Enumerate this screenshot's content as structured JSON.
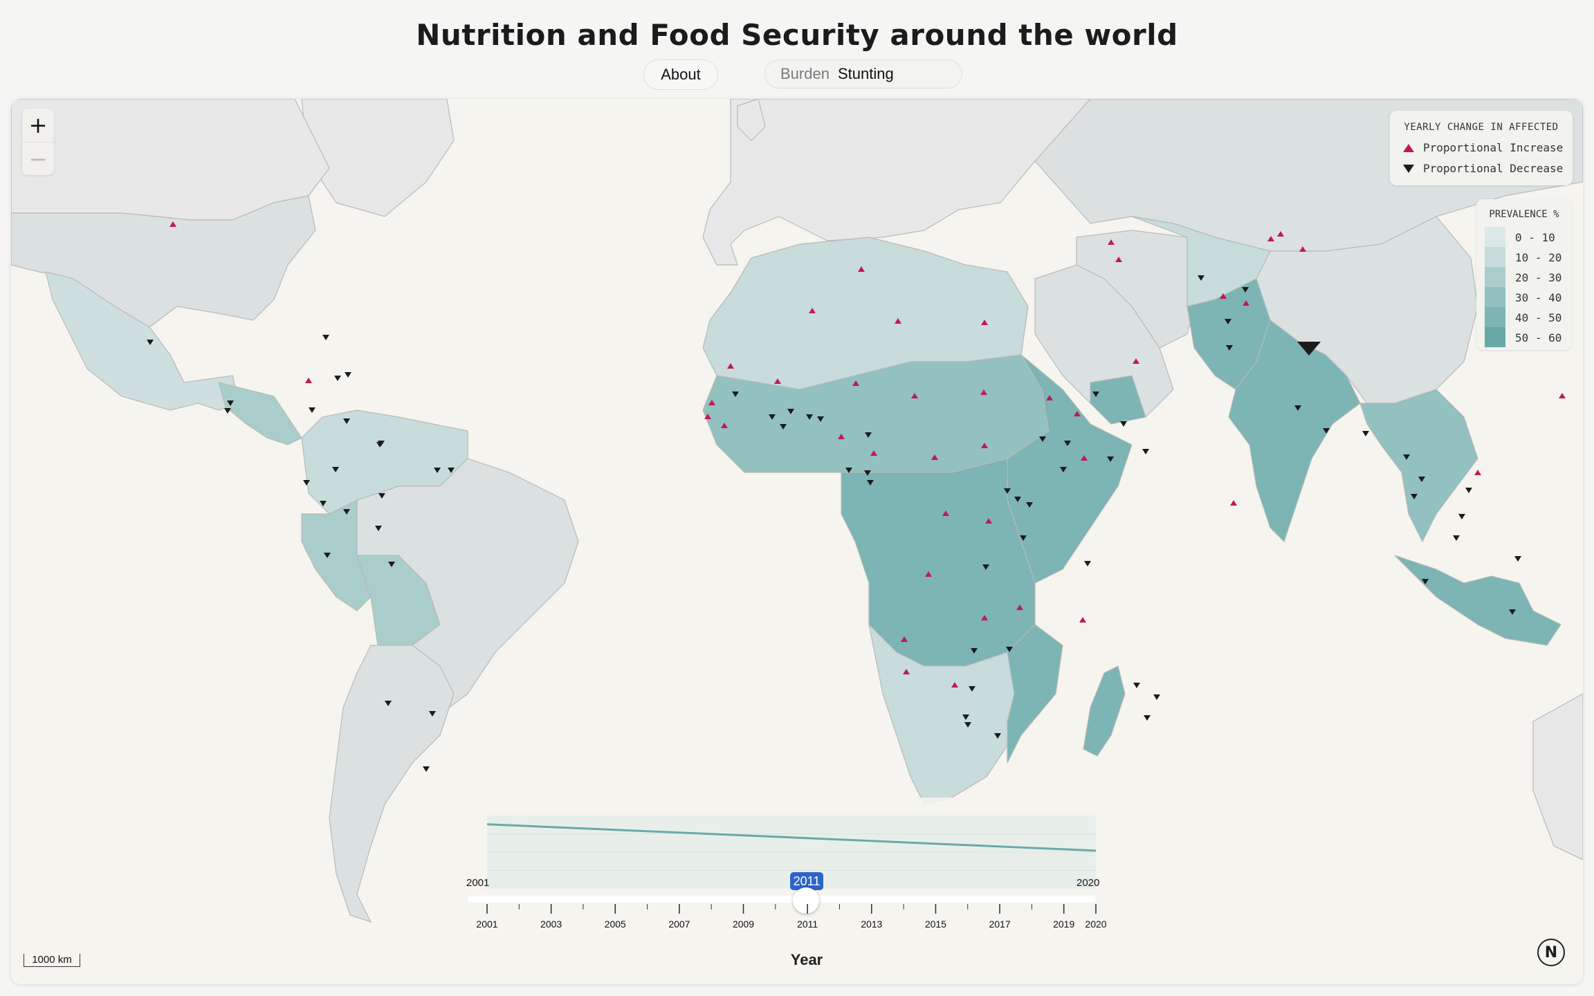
{
  "title": "Nutrition and Food Security around the world",
  "nav": {
    "about_label": "About"
  },
  "burden": {
    "label": "Burden",
    "value": "Stunting"
  },
  "legend_change": {
    "title": "YEARLY CHANGE IN AFFECTED",
    "increase_label": "Proportional Increase",
    "decrease_label": "Proportional Decrease",
    "increase_color": "#c2185b",
    "decrease_color": "#1b1b1b"
  },
  "legend_prevalence": {
    "title": "PREVALENCE %",
    "bins": [
      {
        "range": "0 - 10",
        "color": "#dbe8e7"
      },
      {
        "range": "10 - 20",
        "color": "#c7dcdb"
      },
      {
        "range": "20 - 30",
        "color": "#a9cdcb"
      },
      {
        "range": "30 - 40",
        "color": "#92c1bf"
      },
      {
        "range": "40 - 50",
        "color": "#7cb5b3"
      },
      {
        "range": "50 - 60",
        "color": "#67a9a7"
      }
    ]
  },
  "timeline": {
    "start_label": "2001",
    "end_label": "2020",
    "selected_year": "2011",
    "axis_title": "Year",
    "ticks": [
      "2001",
      "2003",
      "2005",
      "2007",
      "2009",
      "2011",
      "2013",
      "2015",
      "2017",
      "2019",
      "2020"
    ],
    "trend_start": 0.88,
    "trend_end": 0.52
  },
  "scale_bar": "1000 km",
  "north_label": "N",
  "colors": {
    "no_data_land": "#e9e8e8",
    "ocean": "#f6f4ef",
    "line": "#6ba9a7"
  }
}
